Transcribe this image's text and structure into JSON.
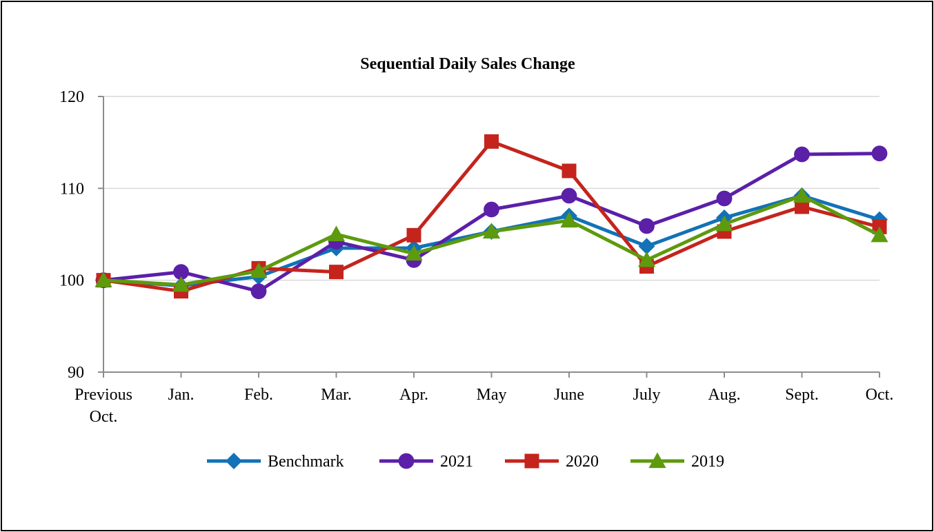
{
  "chart_data": {
    "type": "line",
    "title": "Sequential Daily Sales Change",
    "xlabel": "",
    "ylabel": "",
    "ylim": [
      90,
      120
    ],
    "yticks": [
      90,
      100,
      110,
      120
    ],
    "grid": true,
    "legend_position": "bottom",
    "categories": [
      [
        "Previous",
        "Oct."
      ],
      [
        "Jan."
      ],
      [
        "Feb."
      ],
      [
        "Mar."
      ],
      [
        "Apr."
      ],
      [
        "May"
      ],
      [
        "June"
      ],
      [
        "July"
      ],
      [
        "Aug."
      ],
      [
        "Sept."
      ],
      [
        "Oct."
      ]
    ],
    "series": [
      {
        "name": "Benchmark",
        "color": "#1272B7",
        "marker": "diamond",
        "values": [
          100.0,
          99.4,
          100.4,
          103.5,
          103.5,
          105.3,
          107.0,
          103.7,
          106.8,
          109.2,
          106.6
        ]
      },
      {
        "name": "2021",
        "color": "#5B1FA8",
        "marker": "circle",
        "values": [
          100.0,
          100.9,
          98.8,
          104.2,
          102.2,
          107.7,
          109.2,
          105.9,
          108.9,
          113.7,
          113.8
        ]
      },
      {
        "name": "2020",
        "color": "#C4241C",
        "marker": "square",
        "values": [
          100.0,
          98.8,
          101.3,
          100.9,
          104.9,
          115.1,
          111.9,
          101.5,
          105.3,
          108.0,
          105.8
        ]
      },
      {
        "name": "2019",
        "color": "#5D9A0E",
        "marker": "triangle",
        "values": [
          100.0,
          99.5,
          101.0,
          105.0,
          102.9,
          105.3,
          106.5,
          102.2,
          106.1,
          109.2,
          104.9
        ]
      }
    ]
  }
}
